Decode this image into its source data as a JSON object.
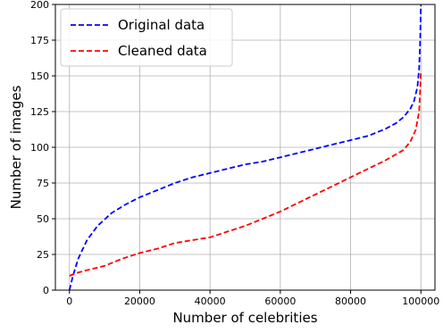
{
  "chart_data": {
    "type": "line",
    "title": "",
    "xlabel": "Number of celebrities",
    "ylabel": "Number of images",
    "xlim": [
      -4000,
      104000
    ],
    "ylim": [
      0,
      200
    ],
    "xticks": [
      0,
      20000,
      40000,
      60000,
      80000,
      100000
    ],
    "xtick_labels": [
      "0",
      "20000",
      "40000",
      "60000",
      "80000",
      "100000"
    ],
    "yticks": [
      0,
      25,
      50,
      75,
      100,
      125,
      150,
      175,
      200
    ],
    "ytick_labels": [
      "0",
      "25",
      "50",
      "75",
      "100",
      "125",
      "150",
      "175",
      "200"
    ],
    "grid": true,
    "legend_position": "top-left",
    "series": [
      {
        "name": "Original data",
        "color": "#0000ff",
        "linestyle": "dashed",
        "x": [
          0,
          1000,
          2500,
          5000,
          8000,
          12000,
          16000,
          20000,
          25000,
          30000,
          35000,
          40000,
          45000,
          50000,
          55000,
          60000,
          65000,
          70000,
          75000,
          80000,
          85000,
          90000,
          93000,
          95000,
          97000,
          98000,
          99000,
          99500,
          99800,
          100000
        ],
        "y": [
          0,
          10,
          22,
          35,
          45,
          54,
          60,
          65,
          70,
          75,
          79,
          82,
          85,
          88,
          90,
          93,
          96,
          99,
          102,
          105,
          108,
          113,
          117,
          121,
          127,
          132,
          142,
          155,
          175,
          200
        ]
      },
      {
        "name": "Cleaned data",
        "color": "#ff0000",
        "linestyle": "dashed",
        "x": [
          0,
          2000,
          5000,
          10000,
          15000,
          20000,
          25000,
          30000,
          35000,
          40000,
          45000,
          50000,
          55000,
          60000,
          65000,
          70000,
          75000,
          80000,
          85000,
          90000,
          95000,
          97000,
          98500,
          99500,
          100000
        ],
        "y": [
          10,
          12,
          14,
          17,
          22,
          26,
          29,
          33,
          35,
          37,
          41,
          45,
          50,
          55,
          61,
          67,
          73,
          79,
          85,
          91,
          98,
          104,
          112,
          125,
          152
        ]
      }
    ]
  }
}
